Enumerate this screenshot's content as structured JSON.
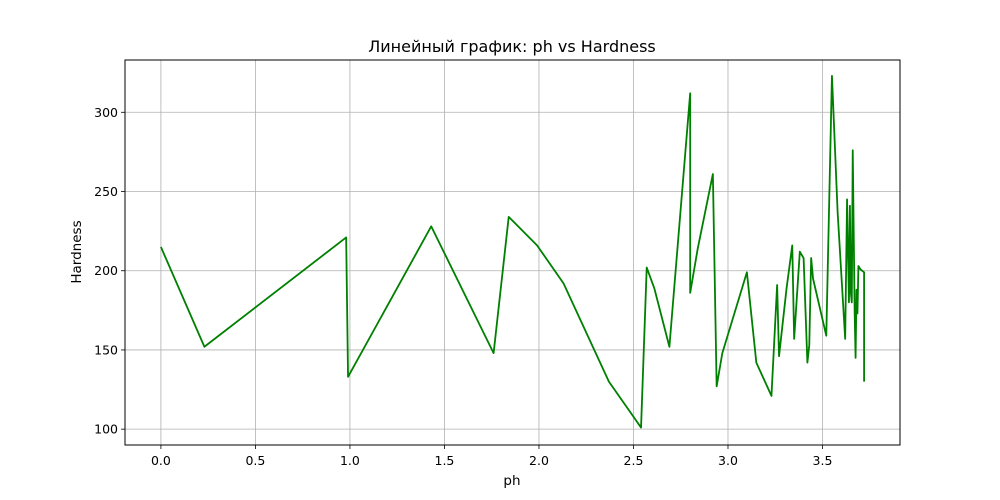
{
  "chart_data": {
    "type": "line",
    "title": "Линейный график: ph vs Hardness",
    "xlabel": "ph",
    "ylabel": "Hardness",
    "xlim": [
      -0.19,
      3.91
    ],
    "ylim": [
      90,
      333
    ],
    "xticks": [
      0.0,
      0.5,
      1.0,
      1.5,
      2.0,
      2.5,
      3.0,
      3.5
    ],
    "xtick_labels": [
      "0.0",
      "0.5",
      "1.0",
      "1.5",
      "2.0",
      "2.5",
      "3.0",
      "3.5"
    ],
    "yticks": [
      100,
      150,
      200,
      250,
      300
    ],
    "ytick_labels": [
      "100",
      "150",
      "200",
      "250",
      "300"
    ],
    "grid": true,
    "color": "#008000",
    "series": [
      {
        "x": [
          0.0,
          0.23,
          0.98,
          0.99,
          1.43,
          1.76,
          1.84,
          1.99,
          2.13,
          2.37,
          2.54,
          2.57,
          2.61,
          2.69,
          2.8,
          2.8,
          2.84,
          2.92,
          2.94,
          2.97,
          3.1,
          3.15,
          3.23,
          3.26,
          3.27,
          3.31,
          3.34,
          3.35,
          3.38,
          3.4,
          3.42,
          3.43,
          3.44,
          3.45,
          3.52,
          3.55,
          3.58,
          3.62,
          3.63,
          3.64,
          3.645,
          3.65,
          3.655,
          3.66,
          3.67,
          3.675,
          3.68,
          3.685,
          3.69,
          3.7,
          3.72,
          3.72
        ],
        "y": [
          215,
          152,
          221,
          133,
          228,
          148,
          234,
          216,
          192,
          130,
          101,
          202,
          189,
          152,
          312,
          186,
          214,
          261,
          127,
          148,
          199,
          142,
          121,
          191,
          146,
          189,
          216,
          157,
          212,
          208,
          142,
          153,
          208,
          195,
          159,
          323,
          237,
          157,
          245,
          180,
          241,
          186,
          180,
          276,
          175,
          145,
          188,
          173,
          203,
          201,
          199,
          130
        ]
      }
    ]
  }
}
